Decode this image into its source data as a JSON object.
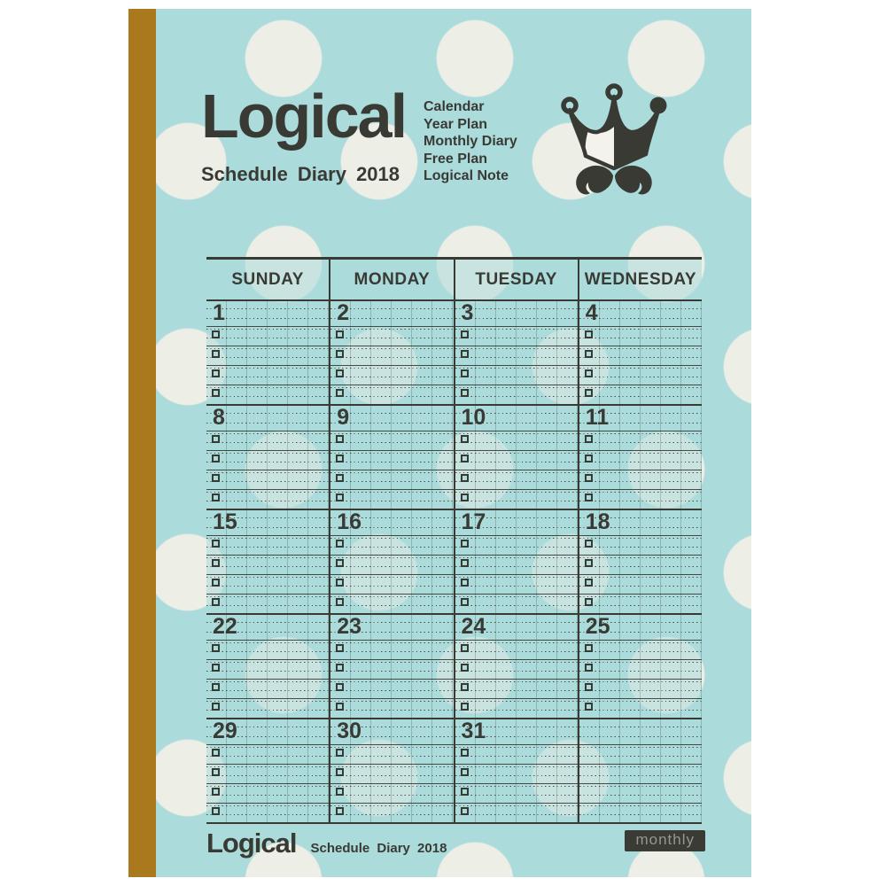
{
  "cover": {
    "title": "Logical",
    "subtitle": "Schedule Diary  2018",
    "features": [
      "Calendar",
      "Year Plan",
      "Monthly Diary",
      "Free Plan",
      "Logical Note"
    ],
    "icons": [
      "crown-icon",
      "mustache-icon"
    ],
    "footer": {
      "brand": "Logical",
      "subtitle": "Schedule Diary  2018",
      "badge": "monthly"
    }
  },
  "calendar": {
    "day_headers": [
      "SUNDAY",
      "MONDAY",
      "TUESDAY",
      "WEDNESDAY"
    ],
    "entry_rows_per_day": 4,
    "weeks": [
      {
        "dates": [
          "1",
          "2",
          "3",
          "4"
        ]
      },
      {
        "dates": [
          "8",
          "9",
          "10",
          "11"
        ]
      },
      {
        "dates": [
          "15",
          "16",
          "17",
          "18"
        ]
      },
      {
        "dates": [
          "22",
          "23",
          "24",
          "25"
        ]
      },
      {
        "dates": [
          "29",
          "30",
          "31",
          ""
        ]
      }
    ]
  },
  "colors": {
    "teal": "#abdbdb",
    "dot": "#edeee6",
    "spine_gold": "#aa791e",
    "ink": "#3a3a35",
    "badge_bg": "#3b3b36",
    "badge_text": "#97978f"
  }
}
